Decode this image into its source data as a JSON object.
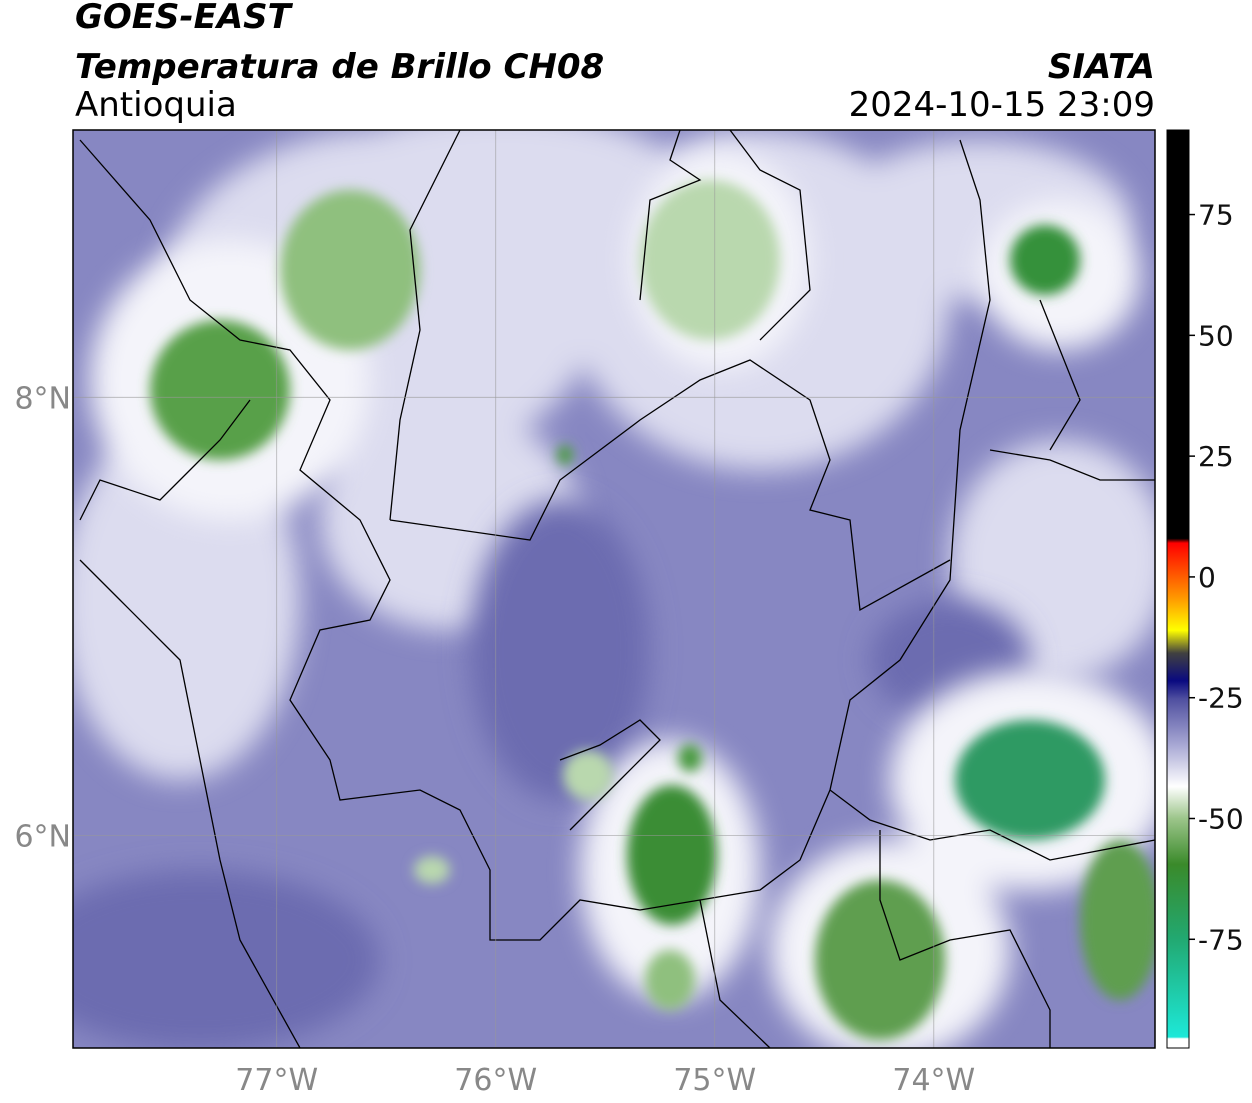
{
  "header": {
    "satellite": "GOES-EAST",
    "product": "Temperatura de Brillo CH08",
    "region": "Antioquia",
    "source": "SIATA",
    "datetime": "2024-10-15 23:09"
  },
  "map": {
    "xlim": [
      -77.93,
      -72.99
    ],
    "ylim": [
      5.03,
      9.22
    ],
    "xticks": [
      {
        "value": -77,
        "label": "77°W"
      },
      {
        "value": -76,
        "label": "76°W"
      },
      {
        "value": -75,
        "label": "75°W"
      },
      {
        "value": -74,
        "label": "74°W"
      }
    ],
    "yticks": [
      {
        "value": 6,
        "label": "6°N"
      },
      {
        "value": 8,
        "label": "8°N"
      }
    ],
    "grid": true
  },
  "colorbar": {
    "lim": [
      -97.5,
      92.5
    ],
    "ticks": [
      -75,
      -50,
      -25,
      0,
      25,
      50,
      75
    ]
  }
}
